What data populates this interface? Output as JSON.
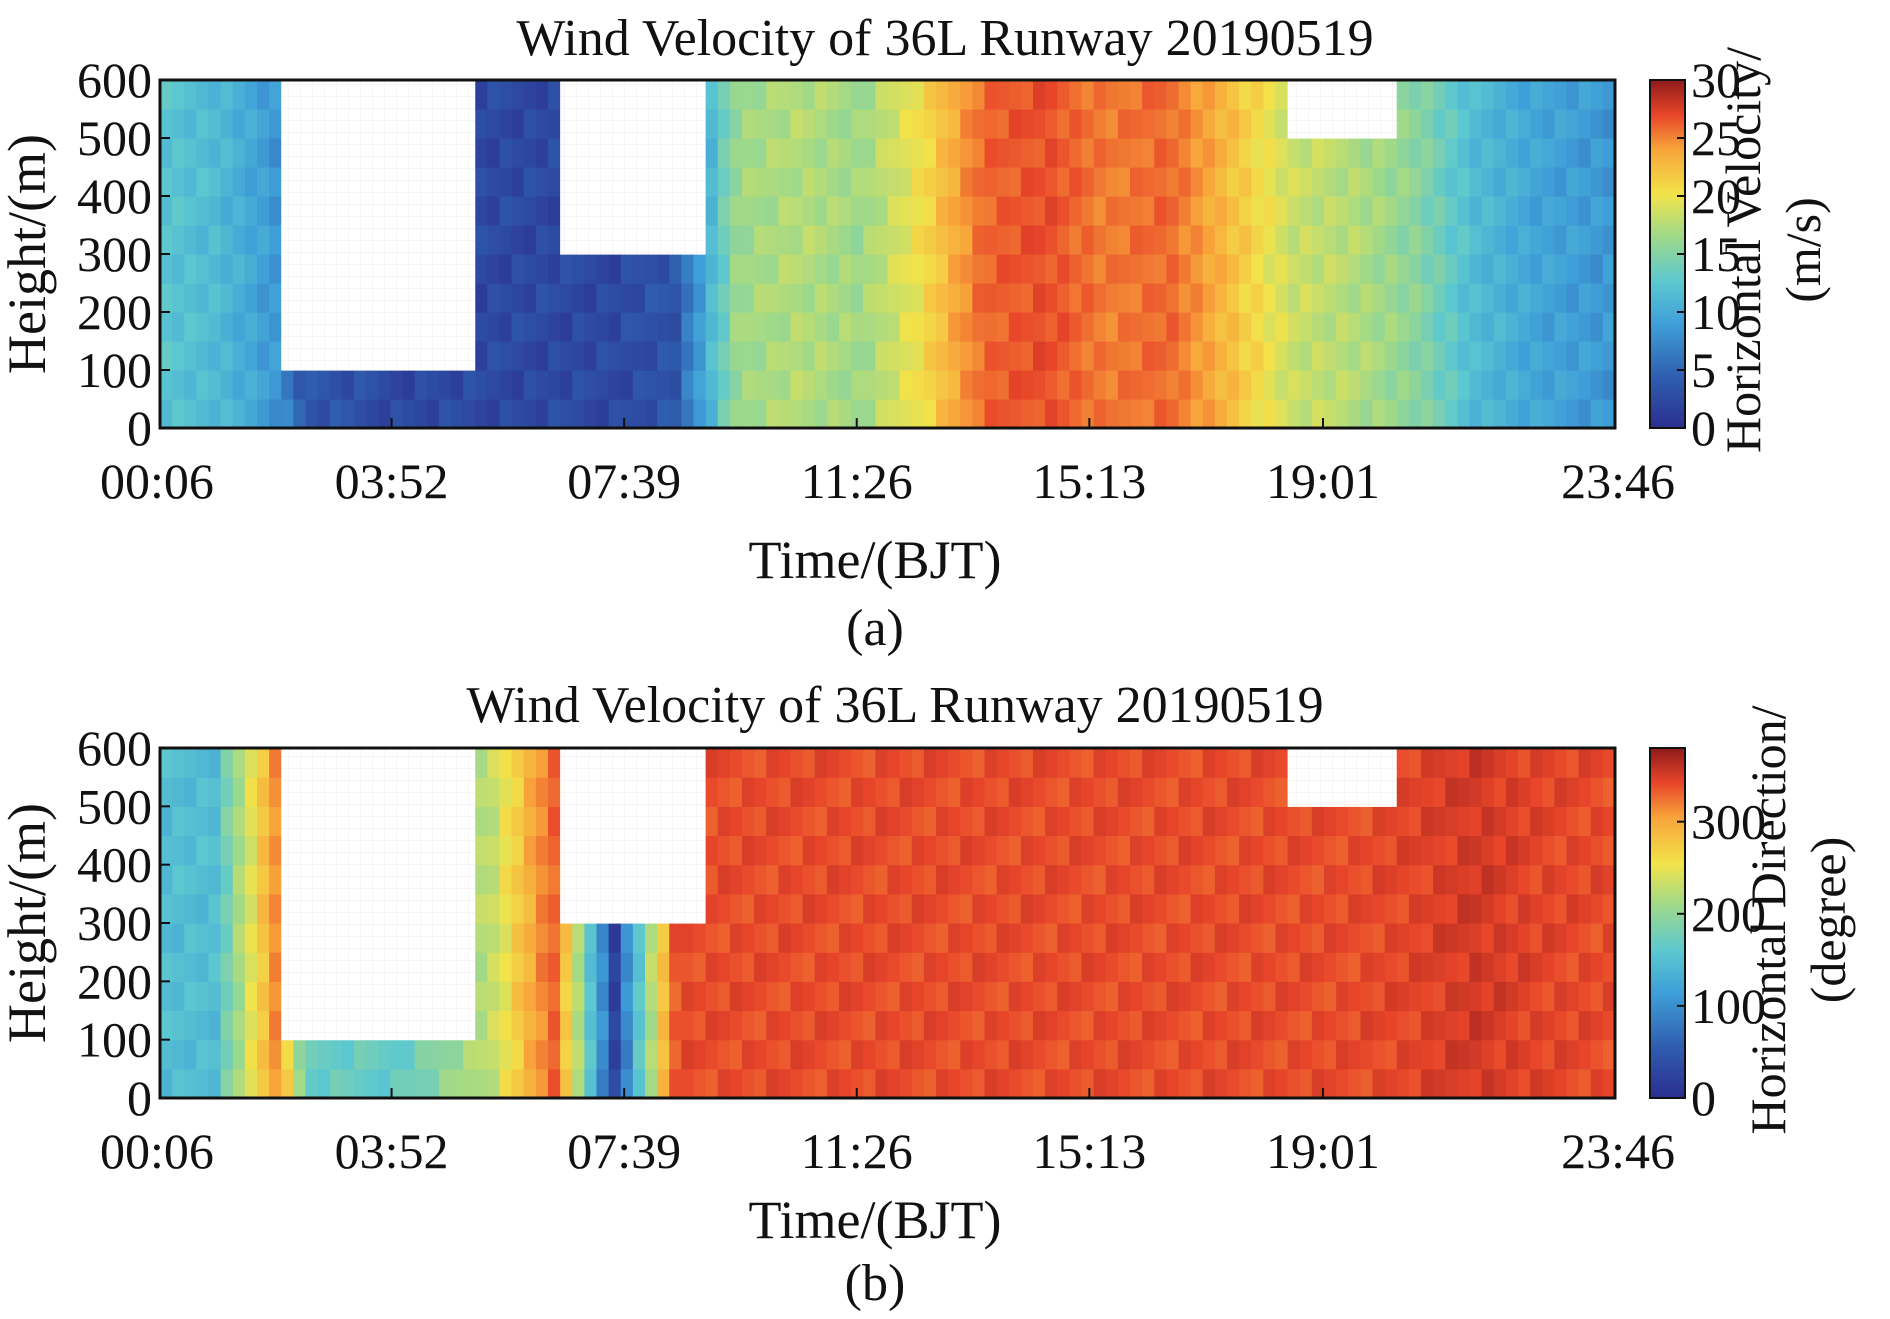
{
  "chart_data": [
    {
      "type": "heatmap",
      "panel": "(a)",
      "title": "Wind Velocity of 36L Runway 20190519",
      "xlabel": "Time/(BJT)",
      "ylabel": "Height/(m)",
      "x_tick_labels": [
        "00:06",
        "03:52",
        "07:39",
        "11:26",
        "15:13",
        "19:01",
        "23:46"
      ],
      "x_tick_hours": [
        0.1,
        3.867,
        7.65,
        11.433,
        15.217,
        19.017,
        23.767
      ],
      "xlim_hours": [
        0.1,
        23.767
      ],
      "ylim": [
        0,
        600
      ],
      "y_ticks": [
        0,
        100,
        200,
        300,
        400,
        500,
        600
      ],
      "colorbar": {
        "label_line1": "Horizontal Velocity/",
        "label_line2": "(m/s)",
        "range": [
          0,
          30
        ],
        "ticks": [
          0,
          5,
          10,
          15,
          20,
          25,
          30
        ],
        "colormap": [
          "#2b2f8f",
          "#2f5fb0",
          "#3f9fd8",
          "#5cc8d0",
          "#9ed98a",
          "#f2e34a",
          "#f8a53a",
          "#e8452a",
          "#8f1a1a"
        ]
      },
      "profile": {
        "time_hours": [
          0.1,
          1.0,
          2.0,
          2.5,
          4.0,
          5.5,
          6.5,
          7.5,
          8.5,
          9.5,
          10.5,
          11.5,
          12.5,
          13.5,
          14.5,
          15.5,
          16.5,
          17.5,
          18.5,
          19.5,
          20.5,
          21.5,
          22.5,
          23.767
        ],
        "velocity_ms": [
          11,
          10,
          7,
          3,
          2,
          2,
          2,
          2,
          3,
          15,
          16,
          15,
          19,
          25,
          26,
          24,
          25,
          21,
          17,
          16,
          14,
          10,
          8,
          7
        ]
      },
      "no_data_gaps": [
        {
          "from_hours": 2.1,
          "to_hours": 5.3,
          "above_m": 110
        },
        {
          "from_hours": 6.6,
          "to_hours": 8.9,
          "above_m": 300
        },
        {
          "from_hours": 18.5,
          "to_hours": 20.3,
          "above_m": 510
        }
      ]
    },
    {
      "type": "heatmap",
      "panel": "(b)",
      "title": "Wind Velocity of 36L Runway 20190519",
      "xlabel": "Time/(BJT)",
      "ylabel": "Height/(m)",
      "x_tick_labels": [
        "00:06",
        "03:52",
        "07:39",
        "11:26",
        "15:13",
        "19:01",
        "23:46"
      ],
      "x_tick_hours": [
        0.1,
        3.867,
        7.65,
        11.433,
        15.217,
        19.017,
        23.767
      ],
      "xlim_hours": [
        0.1,
        23.767
      ],
      "ylim": [
        0,
        600
      ],
      "y_ticks": [
        0,
        100,
        200,
        300,
        400,
        500,
        600
      ],
      "colorbar": {
        "label_line1": "Horizontal Direction/",
        "label_line2": "(degree)",
        "range": [
          0,
          380
        ],
        "ticks": [
          0,
          100,
          200,
          300
        ],
        "colormap": [
          "#2b2f8f",
          "#2f5fb0",
          "#3f9fd8",
          "#5cc8d0",
          "#9ed98a",
          "#f2e34a",
          "#f8a53a",
          "#e8452a",
          "#8f1a1a"
        ]
      },
      "profile": {
        "time_hours": [
          0.1,
          1.0,
          2.0,
          2.5,
          4.0,
          5.5,
          6.5,
          7.5,
          8.5,
          9.5,
          10.5,
          11.5,
          12.5,
          13.5,
          14.5,
          15.5,
          16.5,
          17.5,
          18.5,
          19.5,
          20.5,
          21.5,
          22.5,
          23.767
        ],
        "direction_deg": [
          130,
          130,
          300,
          150,
          150,
          210,
          320,
          20,
          330,
          330,
          330,
          330,
          330,
          330,
          330,
          330,
          330,
          330,
          330,
          330,
          335,
          345,
          335,
          330
        ]
      },
      "no_data_gaps": [
        {
          "from_hours": 2.1,
          "to_hours": 5.3,
          "above_m": 110
        },
        {
          "from_hours": 6.6,
          "to_hours": 8.9,
          "above_m": 300
        },
        {
          "from_hours": 18.5,
          "to_hours": 20.3,
          "above_m": 510
        }
      ]
    }
  ],
  "captions": [
    "(a)",
    "(b)"
  ]
}
